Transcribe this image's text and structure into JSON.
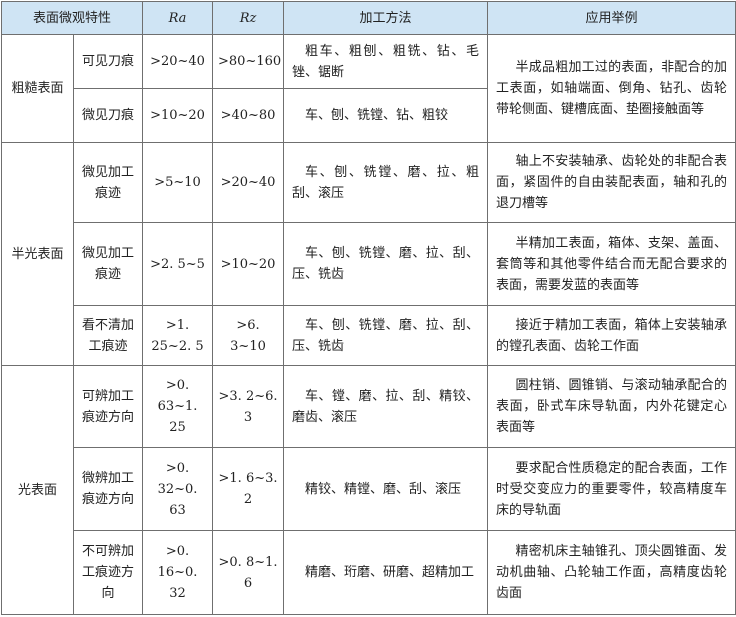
{
  "table": {
    "header": [
      "表面微观特性",
      "Ra",
      "Rz",
      "加工方法",
      "应用举例"
    ],
    "groups": [
      {
        "label": "粗糙表面",
        "rows": [
          [
            "可见刀痕",
            ">20~40",
            ">80~160",
            "粗车、粗刨、粗铣、钻、毛锉、锯断",
            "半成品粗加工过的表面，非配合的加工表面，如轴端面、倒角、钻孔、齿轮带轮侧面、键槽底面、垫圈接触面等"
          ],
          [
            "微见刀痕",
            ">10~20",
            ">40~80",
            "车、刨、铣镗、钻、粗铰",
            null
          ]
        ]
      },
      {
        "label": "半光表面",
        "rows": [
          [
            "微见加工痕迹",
            ">5~10",
            ">20~40",
            "车、刨、铣镗、磨、拉、粗刮、滚压",
            "轴上不安装轴承、齿轮处的非配合表面，紧固件的自由装配表面，轴和孔的退刀槽等"
          ],
          [
            "微见加工痕迹",
            ">2. 5~5",
            ">10~20",
            "车、刨、铣镗、磨、拉、刮、压、铣齿",
            "半精加工表面，箱体、支架、盖面、套筒等和其他零件结合而无配合要求的表面，需要发蓝的表面等"
          ],
          [
            "看不清加工痕迹",
            ">1. 25~2. 5",
            ">6. 3~10",
            "车、刨、铣镗、磨、拉、刮、压、铣齿",
            "接近于精加工表面，箱体上安装轴承的镗孔表面、齿轮工作面"
          ]
        ]
      },
      {
        "label": "光表面",
        "rows": [
          [
            "可辨加工痕迹方向",
            ">0. 63~1. 25",
            ">3. 2~6. 3",
            "车、镗、磨、拉、刮、精铰、磨齿、滚压",
            "圆柱销、圆锥销、与滚动轴承配合的表面，卧式车床导轨面，内外花键定心表面等"
          ],
          [
            "微辨加工痕迹方向",
            ">0. 32~0. 63",
            ">1. 6~3. 2",
            "精铰、精镗、磨、刮、滚压",
            "要求配合性质稳定的配合表面，工作时受交变应力的重要零件，较高精度车床的导轨面"
          ],
          [
            "不可辨加工痕迹方向",
            ">0. 16~0. 32",
            ">0. 8~1. 6",
            "精磨、珩磨、研磨、超精加工",
            "精密机床主轴锥孔、顶尖圆锥面、发动机曲轴、凸轮轴工作面，高精度齿轮齿面"
          ]
        ]
      }
    ]
  }
}
